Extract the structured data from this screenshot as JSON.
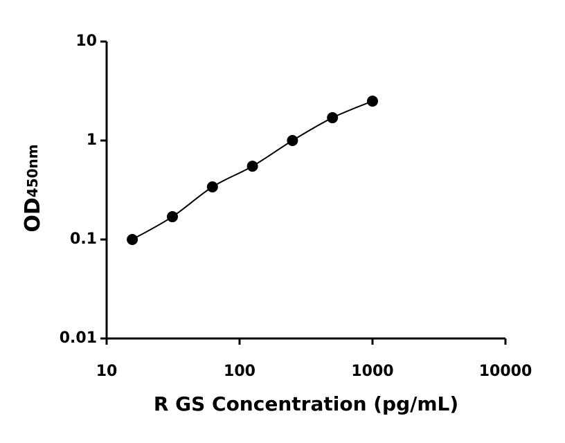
{
  "chart_data": {
    "type": "scatter",
    "x_label": "R GS Concentration (pg/mL)",
    "y_label": "OD",
    "y_label_sub": "450nm",
    "x": [
      15.6,
      31.25,
      62.5,
      125,
      250,
      500,
      1000
    ],
    "series": [
      {
        "color": "#000000",
        "values": [
          0.1,
          0.17,
          0.34,
          0.55,
          1.0,
          1.7,
          2.5
        ]
      }
    ],
    "xscale": "log",
    "yscale": "log",
    "xlim": [
      10,
      10000
    ],
    "ylim": [
      0.01,
      10
    ],
    "xticks": [
      10,
      100,
      1000,
      10000
    ],
    "yticks": [
      0.01,
      0.1,
      1,
      10
    ],
    "fit_line": true
  }
}
